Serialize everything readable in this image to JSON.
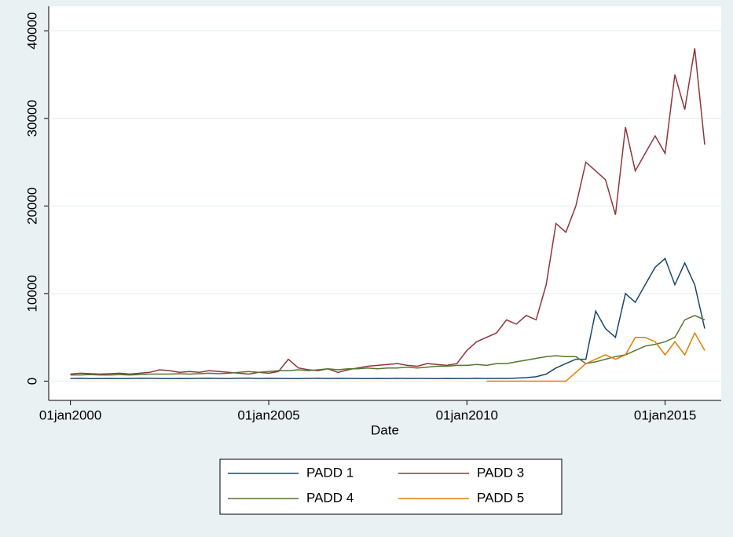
{
  "chart_data": {
    "type": "line",
    "xlabel": "Date",
    "x": [
      "2000-01-01",
      "2000-04-01",
      "2000-07-01",
      "2000-10-01",
      "2001-01-01",
      "2001-04-01",
      "2001-07-01",
      "2001-10-01",
      "2002-01-01",
      "2002-04-01",
      "2002-07-01",
      "2002-10-01",
      "2003-01-01",
      "2003-04-01",
      "2003-07-01",
      "2003-10-01",
      "2004-01-01",
      "2004-04-01",
      "2004-07-01",
      "2004-10-01",
      "2005-01-01",
      "2005-04-01",
      "2005-07-01",
      "2005-10-01",
      "2006-01-01",
      "2006-04-01",
      "2006-07-01",
      "2006-10-01",
      "2007-01-01",
      "2007-04-01",
      "2007-07-01",
      "2007-10-01",
      "2008-01-01",
      "2008-04-01",
      "2008-07-01",
      "2008-10-01",
      "2009-01-01",
      "2009-04-01",
      "2009-07-01",
      "2009-10-01",
      "2010-01-01",
      "2010-04-01",
      "2010-07-01",
      "2010-10-01",
      "2011-01-01",
      "2011-04-01",
      "2011-07-01",
      "2011-10-01",
      "2012-01-01",
      "2012-04-01",
      "2012-07-01",
      "2012-10-01",
      "2013-01-01",
      "2013-04-01",
      "2013-07-01",
      "2013-10-01",
      "2014-01-01",
      "2014-04-01",
      "2014-07-01",
      "2014-10-01",
      "2015-01-01",
      "2015-04-01",
      "2015-07-01",
      "2015-10-01",
      "2016-01-01"
    ],
    "series": [
      {
        "name": "PADD 1",
        "color": "#1a476f",
        "values": [
          300,
          320,
          280,
          300,
          310,
          290,
          300,
          330,
          320,
          300,
          290,
          310,
          300,
          320,
          340,
          310,
          300,
          330,
          350,
          300,
          320,
          310,
          300,
          290,
          310,
          330,
          300,
          320,
          310,
          300,
          290,
          310,
          300,
          320,
          300,
          310,
          300,
          290,
          310,
          300,
          300,
          320,
          300,
          310,
          300,
          350,
          400,
          500,
          800,
          1500,
          2000,
          2500,
          2500,
          8000,
          6000,
          5000,
          10000,
          9000,
          11000,
          13000,
          14000,
          11000,
          13500,
          11000,
          6000
        ]
      },
      {
        "name": "PADD 3",
        "color": "#90353b",
        "values": [
          800,
          900,
          850,
          800,
          850,
          900,
          800,
          900,
          1000,
          1300,
          1200,
          1000,
          1100,
          1000,
          1200,
          1100,
          1000,
          900,
          800,
          1000,
          900,
          1100,
          2500,
          1500,
          1300,
          1200,
          1400,
          1000,
          1300,
          1500,
          1700,
          1800,
          1900,
          2000,
          1800,
          1700,
          2000,
          1900,
          1800,
          2000,
          3500,
          4500,
          5000,
          5500,
          7000,
          6500,
          7500,
          7000,
          11000,
          18000,
          17000,
          20000,
          25000,
          24000,
          23000,
          19000,
          29000,
          24000,
          26000,
          28000,
          26000,
          35000,
          31000,
          38000,
          27000
        ]
      },
      {
        "name": "PADD 4",
        "color": "#55752f",
        "values": [
          700,
          700,
          750,
          700,
          700,
          750,
          700,
          750,
          800,
          800,
          800,
          850,
          800,
          850,
          900,
          850,
          900,
          1000,
          1100,
          1000,
          1100,
          1200,
          1200,
          1300,
          1200,
          1300,
          1400,
          1300,
          1400,
          1400,
          1500,
          1400,
          1500,
          1500,
          1600,
          1500,
          1600,
          1700,
          1700,
          1800,
          1800,
          1900,
          1800,
          2000,
          2000,
          2200,
          2400,
          2600,
          2800,
          2900,
          2800,
          2800,
          2000,
          2200,
          2500,
          2800,
          3000,
          3500,
          4000,
          4200,
          4500,
          5000,
          7000,
          7500,
          7000
        ]
      },
      {
        "name": "PADD 5",
        "color": "#e37e00",
        "values": [
          null,
          null,
          null,
          null,
          null,
          null,
          null,
          null,
          null,
          null,
          null,
          null,
          null,
          null,
          null,
          null,
          null,
          null,
          null,
          null,
          null,
          null,
          null,
          null,
          null,
          null,
          null,
          null,
          null,
          null,
          null,
          null,
          null,
          null,
          null,
          null,
          null,
          null,
          null,
          null,
          null,
          null,
          0,
          0,
          0,
          0,
          0,
          0,
          0,
          0,
          0,
          1000,
          2000,
          2500,
          3000,
          2500,
          3000,
          5000,
          5000,
          4500,
          3000,
          4500,
          3000,
          5500,
          3500
        ]
      }
    ],
    "xlim": [
      "1999-06-15",
      "2016-06-01"
    ],
    "xticks": [
      {
        "value": "2000-01-01",
        "label": "01jan2000"
      },
      {
        "value": "2005-01-01",
        "label": "01jan2005"
      },
      {
        "value": "2010-01-01",
        "label": "01jan2010"
      },
      {
        "value": "2015-01-01",
        "label": "01jan2015"
      }
    ],
    "ylim": [
      -2200,
      42800
    ],
    "yticks": [
      0,
      10000,
      20000,
      30000,
      40000
    ],
    "grid": true
  }
}
